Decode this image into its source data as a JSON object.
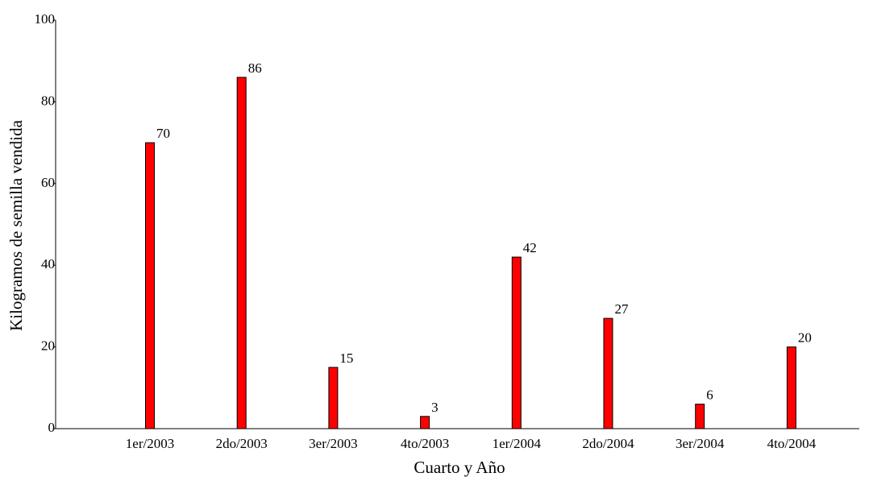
{
  "chart_data": {
    "type": "bar",
    "title": "",
    "xlabel": "Cuarto y Año",
    "ylabel": "Kilogramos de semilla vendida",
    "categories": [
      "1er/2003",
      "2do/2003",
      "3er/2003",
      "4to/2003",
      "1er/2004",
      "2do/2004",
      "3er/2004",
      "4to/2004"
    ],
    "values": [
      70,
      86,
      15,
      3,
      42,
      27,
      6,
      20
    ],
    "data_labels": [
      "70",
      "86",
      "15",
      "3",
      "42",
      "27",
      "6",
      "20"
    ],
    "ylim": [
      0,
      100
    ],
    "yticks": [
      0,
      20,
      40,
      60,
      80,
      100
    ],
    "ytick_labels": [
      "0",
      "20",
      "40",
      "60",
      "80",
      "100"
    ],
    "grid": false,
    "legend": "none",
    "bar_color": "#ff0000",
    "bar_edge_color": "#000000"
  }
}
